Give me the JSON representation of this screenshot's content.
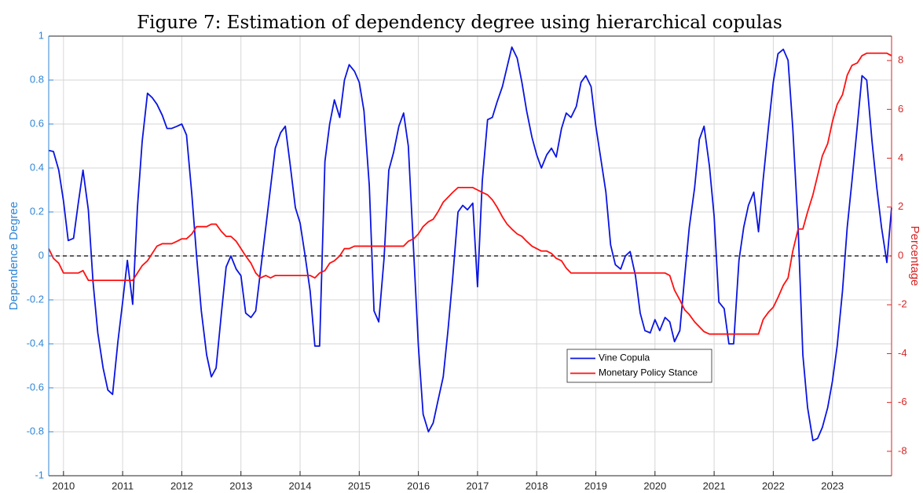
{
  "chart_data": {
    "type": "line",
    "title": "Figure 7: Estimation of dependency degree using hierarchical copulas",
    "ylabel": "Dependence Degree",
    "y2label": "Percentage",
    "ycolor": "#2f86d6",
    "y2color": "#d92424",
    "grid": true,
    "hlines": [
      0
    ],
    "xlim": [
      2009.75,
      2024
    ],
    "xticks": [
      2010,
      2011,
      2012,
      2013,
      2014,
      2015,
      2016,
      2017,
      2018,
      2019,
      2020,
      2021,
      2022,
      2023
    ],
    "ylim": [
      -1,
      1
    ],
    "yticks": [
      -1,
      -0.8,
      -0.6,
      -0.4,
      -0.2,
      0,
      0.2,
      0.4,
      0.6,
      0.8,
      1
    ],
    "y2lim": [
      -9,
      9
    ],
    "y2ticks": [
      -8,
      -6,
      -4,
      -2,
      0,
      2,
      4,
      6,
      8
    ],
    "x": [
      2009.75,
      2009.83,
      2009.92,
      2010,
      2010.08,
      2010.17,
      2010.25,
      2010.33,
      2010.42,
      2010.5,
      2010.58,
      2010.67,
      2010.75,
      2010.83,
      2010.92,
      2011,
      2011.08,
      2011.17,
      2011.25,
      2011.33,
      2011.42,
      2011.5,
      2011.58,
      2011.67,
      2011.75,
      2011.83,
      2011.92,
      2012,
      2012.08,
      2012.17,
      2012.25,
      2012.33,
      2012.42,
      2012.5,
      2012.58,
      2012.67,
      2012.75,
      2012.83,
      2012.92,
      2013,
      2013.08,
      2013.17,
      2013.25,
      2013.33,
      2013.42,
      2013.5,
      2013.58,
      2013.67,
      2013.75,
      2013.83,
      2013.92,
      2014,
      2014.08,
      2014.17,
      2014.25,
      2014.33,
      2014.42,
      2014.5,
      2014.58,
      2014.67,
      2014.75,
      2014.83,
      2014.92,
      2015,
      2015.08,
      2015.17,
      2015.25,
      2015.33,
      2015.42,
      2015.5,
      2015.58,
      2015.67,
      2015.75,
      2015.83,
      2015.92,
      2016,
      2016.08,
      2016.17,
      2016.25,
      2016.33,
      2016.42,
      2016.5,
      2016.58,
      2016.67,
      2016.75,
      2016.83,
      2016.92,
      2017,
      2017.08,
      2017.17,
      2017.25,
      2017.33,
      2017.42,
      2017.5,
      2017.58,
      2017.67,
      2017.75,
      2017.83,
      2017.92,
      2018,
      2018.08,
      2018.17,
      2018.25,
      2018.33,
      2018.42,
      2018.5,
      2018.58,
      2018.67,
      2018.75,
      2018.83,
      2018.92,
      2019,
      2019.08,
      2019.17,
      2019.25,
      2019.33,
      2019.42,
      2019.5,
      2019.58,
      2019.67,
      2019.75,
      2019.83,
      2019.92,
      2020,
      2020.08,
      2020.17,
      2020.25,
      2020.33,
      2020.42,
      2020.5,
      2020.58,
      2020.67,
      2020.75,
      2020.83,
      2020.92,
      2021,
      2021.08,
      2021.17,
      2021.25,
      2021.33,
      2021.42,
      2021.5,
      2021.58,
      2021.67,
      2021.75,
      2021.83,
      2021.92,
      2022,
      2022.08,
      2022.17,
      2022.25,
      2022.33,
      2022.42,
      2022.5,
      2022.58,
      2022.67,
      2022.75,
      2022.83,
      2022.92,
      2023,
      2023.08,
      2023.17,
      2023.25,
      2023.33,
      2023.42,
      2023.5,
      2023.58,
      2023.67,
      2023.75,
      2023.83,
      2023.92,
      2024
    ],
    "series": [
      {
        "name": "Vine Copula",
        "color": "#0a14e0",
        "values": [
          0.48,
          0.475,
          0.39,
          0.25,
          0.07,
          0.08,
          0.24,
          0.39,
          0.21,
          -0.12,
          -0.35,
          -0.51,
          -0.61,
          -0.63,
          -0.39,
          -0.21,
          -0.02,
          -0.22,
          0.22,
          0.52,
          0.74,
          0.72,
          0.69,
          0.64,
          0.58,
          0.58,
          0.59,
          0.6,
          0.55,
          0.28,
          0,
          -0.25,
          -0.45,
          -0.55,
          -0.51,
          -0.26,
          -0.05,
          0,
          -0.06,
          -0.09,
          -0.26,
          -0.28,
          -0.25,
          -0.07,
          0.13,
          0.31,
          0.49,
          0.56,
          0.59,
          0.42,
          0.22,
          0.15,
          0.01,
          -0.16,
          -0.41,
          -0.41,
          0.43,
          0.6,
          0.71,
          0.63,
          0.8,
          0.87,
          0.84,
          0.79,
          0.66,
          0.32,
          -0.25,
          -0.3,
          -0.01,
          0.39,
          0.47,
          0.59,
          0.65,
          0.5,
          0.02,
          -0.41,
          -0.72,
          -0.8,
          -0.76,
          -0.66,
          -0.55,
          -0.34,
          -0.1,
          0.2,
          0.23,
          0.21,
          0.24,
          -0.14,
          0.34,
          0.62,
          0.63,
          0.7,
          0.77,
          0.86,
          0.95,
          0.9,
          0.79,
          0.66,
          0.54,
          0.46,
          0.4,
          0.46,
          0.49,
          0.45,
          0.58,
          0.65,
          0.63,
          0.68,
          0.79,
          0.82,
          0.77,
          0.59,
          0.45,
          0.29,
          0.05,
          -0.04,
          -0.06,
          0,
          0.02,
          -0.09,
          -0.26,
          -0.34,
          -0.35,
          -0.29,
          -0.34,
          -0.28,
          -0.3,
          -0.39,
          -0.34,
          -0.1,
          0.13,
          0.31,
          0.53,
          0.59,
          0.41,
          0.18,
          -0.21,
          -0.24,
          -0.4,
          -0.4,
          -0.02,
          0.13,
          0.23,
          0.29,
          0.11,
          0.35,
          0.59,
          0.79,
          0.92,
          0.94,
          0.89,
          0.58,
          0.13,
          -0.45,
          -0.69,
          -0.84,
          -0.83,
          -0.78,
          -0.69,
          -0.57,
          -0.41,
          -0.16,
          0.13,
          0.34,
          0.59,
          0.82,
          0.8,
          0.52,
          0.31,
          0.13,
          -0.03,
          0.22
        ]
      },
      {
        "name": "Monetary Policy Stance",
        "color": "#ff1010",
        "axis": "y2",
        "values": [
          0.3,
          -0.1,
          -0.3,
          -0.7,
          -0.7,
          -0.7,
          -0.7,
          -0.6,
          -1,
          -1,
          -1,
          -1,
          -1,
          -1,
          -1,
          -1,
          -1,
          -1,
          -0.7,
          -0.4,
          -0.2,
          0.1,
          0.4,
          0.5,
          0.5,
          0.5,
          0.6,
          0.7,
          0.7,
          0.9,
          1.2,
          1.2,
          1.2,
          1.3,
          1.3,
          1,
          0.8,
          0.8,
          0.6,
          0.3,
          0,
          -0.3,
          -0.7,
          -0.9,
          -0.8,
          -0.9,
          -0.8,
          -0.8,
          -0.8,
          -0.8,
          -0.8,
          -0.8,
          -0.8,
          -0.8,
          -0.9,
          -0.7,
          -0.6,
          -0.3,
          -0.2,
          0,
          0.3,
          0.3,
          0.4,
          0.4,
          0.4,
          0.4,
          0.4,
          0.4,
          0.4,
          0.4,
          0.4,
          0.4,
          0.4,
          0.6,
          0.7,
          0.9,
          1.2,
          1.4,
          1.5,
          1.8,
          2.2,
          2.4,
          2.6,
          2.8,
          2.8,
          2.8,
          2.8,
          2.7,
          2.6,
          2.5,
          2.3,
          2,
          1.6,
          1.3,
          1.1,
          0.9,
          0.8,
          0.6,
          0.4,
          0.3,
          0.2,
          0.2,
          0.1,
          -0.1,
          -0.2,
          -0.5,
          -0.7,
          -0.7,
          -0.7,
          -0.7,
          -0.7,
          -0.7,
          -0.7,
          -0.7,
          -0.7,
          -0.7,
          -0.7,
          -0.7,
          -0.7,
          -0.7,
          -0.7,
          -0.7,
          -0.7,
          -0.7,
          -0.7,
          -0.7,
          -0.8,
          -1.4,
          -1.8,
          -2.2,
          -2.4,
          -2.7,
          -2.9,
          -3.1,
          -3.2,
          -3.2,
          -3.2,
          -3.2,
          -3.2,
          -3.2,
          -3.2,
          -3.2,
          -3.2,
          -3.2,
          -3.2,
          -2.6,
          -2.3,
          -2.1,
          -1.7,
          -1.2,
          -0.9,
          0.2,
          1.1,
          1.1,
          1.8,
          2.5,
          3.3,
          4.1,
          4.6,
          5.5,
          6.2,
          6.6,
          7.4,
          7.8,
          7.9,
          8.2,
          8.3,
          8.3,
          8.3,
          8.3,
          8.3,
          8.2
        ]
      }
    ]
  }
}
